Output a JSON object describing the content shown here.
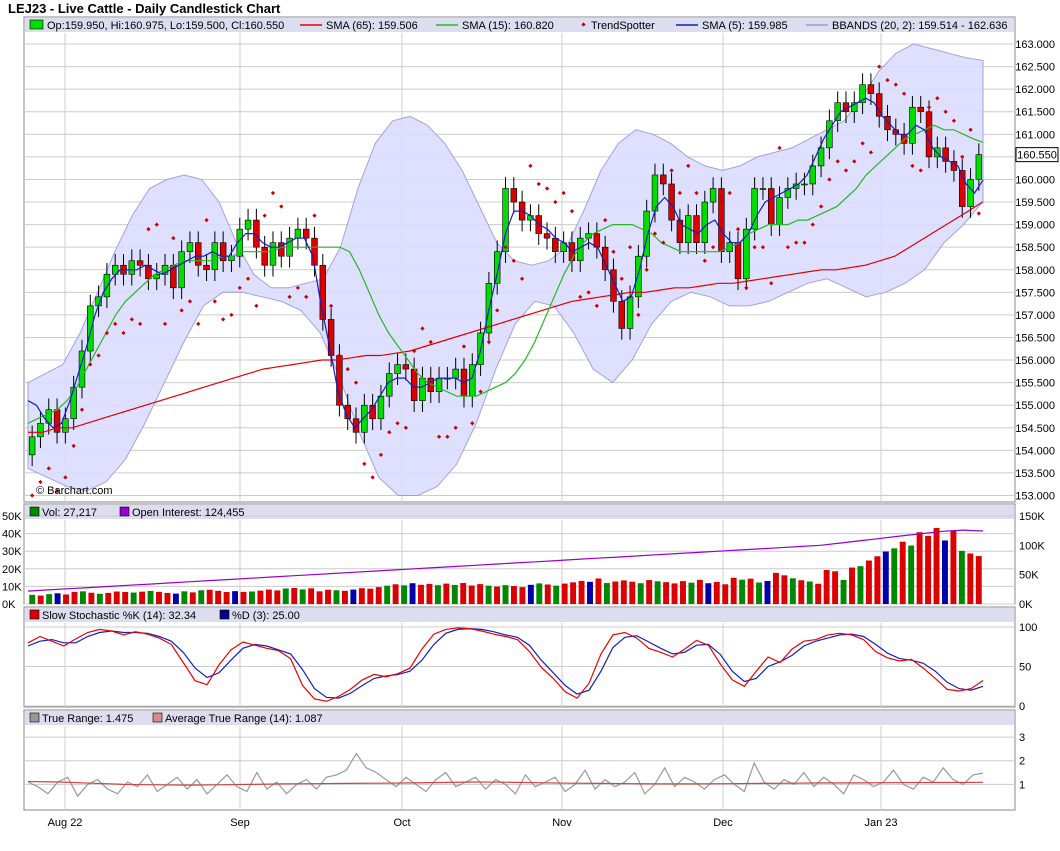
{
  "title": "LEJ23 - Live Cattle - Daily Candlestick Chart",
  "watermark": "© Barchart.com",
  "colors": {
    "up": "#00dd00",
    "down": "#dd0000",
    "sma65": "#e00000",
    "sma15": "#22bb22",
    "sma5": "#1020c0",
    "trend": "#cc0000",
    "bband_fill": "#dcdcff",
    "bband_line": "#9999dd",
    "oi": "#9900cc",
    "tr": "#999999",
    "atr": "#cc4444",
    "stochK": "#ee0000",
    "stochD": "#1020c0",
    "legend_bg": "#ddddf0",
    "grid": "#cccccc"
  },
  "legends": {
    "price": [
      {
        "swatch": "up-box",
        "text": "Op:159.950, Hi:160.975, Lo:159.500, Cl:160.550"
      },
      {
        "swatch": "line-sma65",
        "text": "SMA (65): 159.506"
      },
      {
        "swatch": "line-sma15",
        "text": "SMA (15): 160.820"
      },
      {
        "swatch": "dot-trend",
        "text": "TrendSpotter"
      },
      {
        "swatch": "line-sma5",
        "text": "SMA (5): 159.985"
      },
      {
        "swatch": "line-bband",
        "text": "BBANDS (20, 2): 159.514 - 162.636"
      }
    ],
    "volume": [
      {
        "swatch": "vol-box",
        "text": "Vol: 27,217"
      },
      {
        "swatch": "oi-box",
        "text": "Open Interest: 124,455"
      }
    ],
    "stoch": [
      {
        "swatch": "k-box",
        "text": "Slow Stochastic %K (14): 32.34"
      },
      {
        "swatch": "d-box",
        "text": "%D (3): 25.00"
      }
    ],
    "atr": [
      {
        "swatch": "tr-box",
        "text": "True Range: 1.475"
      },
      {
        "swatch": "atr-box",
        "text": "Average True Range (14): 1.087"
      }
    ]
  },
  "last_price_label": "160.550",
  "x_axis_labels": [
    "Aug 22",
    "Sep",
    "Oct",
    "Nov",
    "Dec",
    "Jan 23"
  ],
  "chart_data": [
    {
      "type": "candlestick",
      "panel": "price",
      "yticks": [
        "153.000",
        "153.500",
        "154.000",
        "154.500",
        "155.000",
        "155.500",
        "156.000",
        "156.500",
        "157.000",
        "157.500",
        "158.000",
        "158.500",
        "159.000",
        "159.500",
        "160.000",
        "160.500",
        "161.000",
        "161.500",
        "162.000",
        "162.500",
        "163.000"
      ],
      "ylim": [
        152.9,
        163.2
      ],
      "closes": [
        154.3,
        154.6,
        154.9,
        154.4,
        154.7,
        155.4,
        156.2,
        157.2,
        157.4,
        157.9,
        158.1,
        157.9,
        158.2,
        158.1,
        157.8,
        157.9,
        158.1,
        157.6,
        158.4,
        158.6,
        158.1,
        158.0,
        158.6,
        158.2,
        158.3,
        158.9,
        159.1,
        158.5,
        158.1,
        158.6,
        158.3,
        158.7,
        158.9,
        158.7,
        158.1,
        156.9,
        156.1,
        155.0,
        154.7,
        154.4,
        155.0,
        154.7,
        155.2,
        155.7,
        155.9,
        155.8,
        155.1,
        155.6,
        155.3,
        155.6,
        155.6,
        155.8,
        155.2,
        155.9,
        156.6,
        157.7,
        158.4,
        159.8,
        159.5,
        159.1,
        159.2,
        158.8,
        158.7,
        158.4,
        158.6,
        158.2,
        158.7,
        158.8,
        158.5,
        158.0,
        157.3,
        156.7,
        157.4,
        158.3,
        159.3,
        160.1,
        159.9,
        159.1,
        158.6,
        159.2,
        158.6,
        159.5,
        159.8,
        158.4,
        158.6,
        157.8,
        158.9,
        159.8,
        159.8,
        159.0,
        159.6,
        159.8,
        159.9,
        159.9,
        160.3,
        160.7,
        161.3,
        161.7,
        161.5,
        161.7,
        162.1,
        161.9,
        161.4,
        161.1,
        161.0,
        160.8,
        161.6,
        161.5,
        160.5,
        160.7,
        160.4,
        160.2,
        159.4,
        160.0,
        160.55
      ],
      "sma5": [
        155.1,
        155.0,
        154.7,
        154.5,
        154.6,
        155.1,
        155.7,
        156.3,
        157.0,
        157.5,
        157.8,
        158.0,
        158.0,
        158.0,
        158.1,
        158.0,
        157.9,
        158.0,
        158.1,
        158.2,
        158.3,
        158.3,
        158.4,
        158.3,
        158.3,
        158.6,
        158.8,
        158.8,
        158.6,
        158.5,
        158.5,
        158.6,
        158.7,
        158.7,
        158.3,
        157.2,
        156.3,
        155.3,
        154.8,
        154.5,
        154.7,
        154.9,
        155.2,
        155.5,
        155.6,
        155.6,
        155.4,
        155.4,
        155.5,
        155.6,
        155.6,
        155.6,
        155.5,
        155.6,
        156.2,
        157.1,
        157.9,
        158.8,
        159.3,
        159.3,
        159.2,
        159.0,
        158.9,
        158.7,
        158.6,
        158.4,
        158.5,
        158.6,
        158.5,
        158.1,
        157.7,
        157.3,
        157.4,
        158.0,
        158.8,
        159.4,
        159.6,
        159.4,
        159.0,
        158.9,
        158.8,
        159.0,
        159.1,
        158.8,
        158.6,
        158.6,
        158.8,
        159.2,
        159.5,
        159.6,
        159.7,
        159.8,
        159.9,
        160.1,
        160.5,
        160.9,
        161.2,
        161.5,
        161.6,
        161.7,
        161.8,
        161.7,
        161.4,
        161.2,
        161.0,
        161.0,
        161.2,
        161.1,
        160.7,
        160.5,
        160.4,
        160.3,
        159.9,
        159.7,
        159.985
      ],
      "sma15": [
        154.6,
        154.7,
        154.8,
        154.9,
        155.1,
        155.4,
        155.8,
        156.2,
        156.6,
        157.0,
        157.3,
        157.5,
        157.7,
        157.9,
        158.0,
        158.1,
        158.2,
        158.2,
        158.2,
        158.2,
        158.3,
        158.3,
        158.4,
        158.4,
        158.4,
        158.4,
        158.5,
        158.5,
        158.5,
        158.5,
        158.5,
        158.5,
        158.5,
        158.4,
        158.0,
        157.5,
        157.0,
        156.6,
        156.3,
        156.0,
        155.7,
        155.5,
        155.4,
        155.3,
        155.2,
        155.2,
        155.2,
        155.3,
        155.4,
        155.5,
        155.7,
        156.0,
        156.4,
        156.9,
        157.4,
        157.9,
        158.3,
        158.6,
        158.8,
        158.9,
        159.0,
        159.0,
        159.0,
        158.9,
        158.8,
        158.6,
        158.5,
        158.4,
        158.4,
        158.4,
        158.4,
        158.4,
        158.5,
        158.6,
        158.8,
        158.9,
        159.0,
        159.0,
        159.0,
        159.1,
        159.1,
        159.2,
        159.3,
        159.4,
        159.6,
        159.8,
        160.1,
        160.3,
        160.5,
        160.7,
        160.9,
        161.0,
        161.1,
        161.2,
        161.1,
        161.1,
        161.0,
        160.9,
        160.82
      ],
      "sma65": [
        154.4,
        154.4,
        154.5,
        154.5,
        154.6,
        154.7,
        154.8,
        154.9,
        155.0,
        155.1,
        155.2,
        155.3,
        155.4,
        155.5,
        155.6,
        155.7,
        155.8,
        155.85,
        155.9,
        155.95,
        156.0,
        156.0,
        156.05,
        156.1,
        156.1,
        156.15,
        156.2,
        156.3,
        156.4,
        156.5,
        156.6,
        156.7,
        156.8,
        156.9,
        157.0,
        157.1,
        157.2,
        157.3,
        157.35,
        157.4,
        157.45,
        157.5,
        157.5,
        157.55,
        157.6,
        157.6,
        157.65,
        157.7,
        157.7,
        157.75,
        157.8,
        157.85,
        157.9,
        157.95,
        158.0,
        158.0,
        158.05,
        158.1,
        158.2,
        158.3,
        158.5,
        158.7,
        158.9,
        159.1,
        159.3,
        159.506
      ],
      "bband_upper": [
        155.5,
        155.7,
        155.9,
        156.6,
        157.5,
        158.4,
        159.2,
        159.8,
        160.0,
        160.1,
        160.0,
        159.5,
        158.6,
        157.9,
        157.6,
        157.6,
        157.7,
        157.8,
        158.5,
        159.8,
        160.8,
        161.3,
        161.4,
        161.2,
        160.8,
        160.2,
        159.4,
        158.6,
        158.2,
        158.1,
        158.2,
        158.5,
        159.3,
        160.2,
        160.8,
        161.1,
        161.0,
        160.8,
        160.5,
        160.3,
        160.2,
        160.3,
        160.5,
        160.6,
        160.7,
        160.9,
        161.1,
        161.3,
        161.8,
        162.4,
        162.8,
        163.0,
        162.9,
        162.8,
        162.7,
        162.636
      ],
      "bband_lower": [
        153.6,
        153.4,
        153.2,
        153.1,
        153.3,
        153.8,
        154.6,
        155.5,
        156.4,
        157.2,
        157.5,
        157.5,
        157.4,
        157.3,
        157.1,
        156.6,
        155.6,
        154.4,
        153.4,
        153.0,
        153.0,
        153.2,
        153.7,
        154.6,
        155.8,
        156.8,
        157.3,
        157.2,
        156.6,
        155.8,
        155.5,
        156.0,
        156.8,
        157.3,
        157.5,
        157.4,
        157.2,
        157.2,
        157.3,
        157.5,
        157.7,
        157.8,
        157.6,
        157.4,
        157.5,
        157.7,
        158.0,
        158.6,
        159.0,
        159.514
      ]
    },
    {
      "type": "bar",
      "panel": "volume",
      "yticks_left": [
        "0K",
        "10K",
        "20K",
        "30K",
        "40K",
        "50K"
      ],
      "yticks_right": [
        "0K",
        "50K",
        "100K",
        "150K"
      ],
      "ylim": [
        0,
        50000
      ],
      "oi_ylim": [
        0,
        150000
      ],
      "last_volume": 27217,
      "last_open_interest": 124455,
      "volume": [
        5200,
        4800,
        5600,
        6100,
        5400,
        6900,
        7200,
        6400,
        5800,
        6300,
        7100,
        6800,
        6500,
        7000,
        7400,
        6900,
        6300,
        5900,
        7200,
        6600,
        7800,
        8100,
        7500,
        6800,
        7300,
        6900,
        7100,
        7600,
        8200,
        7700,
        8800,
        9100,
        8300,
        8900,
        7200,
        8100,
        7800,
        7500,
        8200,
        9000,
        8700,
        9600,
        10400,
        11200,
        10600,
        11800,
        10900,
        11400,
        10700,
        11600,
        10800,
        11900,
        10500,
        11300,
        10400,
        9900,
        10700,
        10200,
        9600,
        10900,
        11700,
        11100,
        10400,
        11600,
        12300,
        13100,
        12600,
        14500,
        11900,
        12800,
        13400,
        12700,
        11800,
        13600,
        12900,
        12400,
        11700,
        13000,
        12100,
        13700,
        11800,
        12500,
        11200,
        14900,
        13800,
        14400,
        12200,
        13100,
        17700,
        16300,
        14600,
        13500,
        12800,
        11500,
        19300,
        18600,
        13700,
        20700,
        21500,
        24700,
        27100,
        29800,
        31600,
        35400,
        33200,
        40800,
        38700,
        43200,
        36100,
        41500,
        30200,
        28700,
        27217
      ],
      "open_interest": [
        22000,
        24000,
        26000,
        28000,
        30000,
        32000,
        34000,
        36000,
        38000,
        40000,
        42000,
        44000,
        46000,
        48000,
        50000,
        52000,
        54000,
        56000,
        58000,
        60000,
        62000,
        64000,
        66000,
        68000,
        70000,
        72000,
        74000,
        76000,
        78000,
        80000,
        82000,
        84000,
        86000,
        88000,
        90000,
        92000,
        94000,
        96000,
        98000,
        100000,
        104000,
        108000,
        112000,
        116000,
        120000,
        124000,
        126000,
        124455
      ]
    },
    {
      "type": "line",
      "panel": "stochastic",
      "yticks": [
        "0",
        "50",
        "100"
      ],
      "ylim": [
        0,
        105
      ],
      "series": [
        {
          "name": "Slow Stochastic %K (14)",
          "values": [
            80,
            88,
            82,
            76,
            85,
            93,
            97,
            95,
            90,
            94,
            91,
            86,
            78,
            55,
            32,
            27,
            52,
            71,
            81,
            77,
            73,
            70,
            60,
            26,
            9,
            6,
            12,
            21,
            33,
            40,
            37,
            41,
            48,
            72,
            91,
            97,
            99,
            98,
            95,
            91,
            88,
            84,
            69,
            49,
            35,
            18,
            10,
            29,
            66,
            90,
            93,
            86,
            73,
            68,
            62,
            72,
            83,
            77,
            53,
            33,
            25,
            44,
            62,
            55,
            72,
            82,
            84,
            90,
            92,
            90,
            84,
            69,
            61,
            57,
            59,
            48,
            35,
            21,
            19,
            22,
            32.34
          ]
        },
        {
          "name": "%D (3)",
          "values": [
            76,
            82,
            84,
            80,
            80,
            88,
            93,
            95,
            93,
            93,
            92,
            88,
            82,
            68,
            48,
            36,
            42,
            58,
            73,
            78,
            76,
            71,
            66,
            46,
            22,
            11,
            10,
            16,
            26,
            35,
            38,
            40,
            44,
            58,
            78,
            92,
            97,
            98,
            97,
            94,
            90,
            87,
            77,
            58,
            42,
            26,
            15,
            20,
            44,
            74,
            87,
            89,
            81,
            73,
            66,
            68,
            77,
            78,
            65,
            44,
            31,
            35,
            50,
            56,
            64,
            76,
            82,
            86,
            90,
            91,
            88,
            78,
            67,
            60,
            58,
            54,
            44,
            30,
            22,
            20,
            25.0
          ]
        }
      ]
    },
    {
      "type": "line",
      "panel": "atr",
      "yticks": [
        "1",
        "2",
        "3"
      ],
      "ylim": [
        0,
        3.4
      ],
      "series": [
        {
          "name": "True Range",
          "values": [
            1.1,
            0.9,
            0.6,
            1.1,
            1.3,
            0.5,
            1.0,
            1.2,
            0.8,
            0.6,
            1.1,
            0.9,
            1.4,
            0.7,
            1.0,
            1.3,
            0.8,
            1.2,
            0.6,
            1.0,
            1.4,
            0.9,
            0.7,
            1.5,
            0.8,
            1.1,
            0.6,
            1.0,
            1.2,
            0.8,
            1.3,
            1.4,
            1.6,
            2.3,
            1.7,
            1.5,
            1.2,
            0.9,
            1.3,
            1.0,
            0.7,
            1.2,
            1.5,
            0.9,
            1.1,
            1.3,
            0.8,
            1.2,
            1.0,
            0.6,
            1.4,
            0.9,
            1.1,
            1.3,
            0.7,
            1.0,
            1.6,
            0.8,
            1.2,
            0.9,
            1.1,
            1.5,
            0.6,
            1.0,
            1.7,
            0.9,
            1.3,
            1.1,
            0.8,
            1.2,
            1.4,
            1.0,
            0.7,
            1.9,
            1.1,
            0.8,
            1.2,
            1.0,
            1.5,
            0.9,
            1.3,
            1.0,
            0.6,
            1.4,
            1.2,
            0.9,
            1.1,
            1.6,
            1.0,
            0.8,
            1.3,
            1.1,
            1.7,
            1.2,
            1.0,
            1.4,
            1.475
          ]
        },
        {
          "name": "Average True Range (14)",
          "values": [
            1.12,
            1.1,
            1.05,
            1.0,
            0.98,
            0.97,
            0.98,
            1.0,
            1.02,
            1.03,
            1.04,
            1.05,
            1.06,
            1.08,
            1.1,
            1.09,
            1.07,
            1.05,
            1.04,
            1.03,
            1.02,
            1.02,
            1.03,
            1.04,
            1.05,
            1.06,
            1.06,
            1.07,
            1.08,
            1.08,
            1.087
          ]
        }
      ]
    }
  ]
}
